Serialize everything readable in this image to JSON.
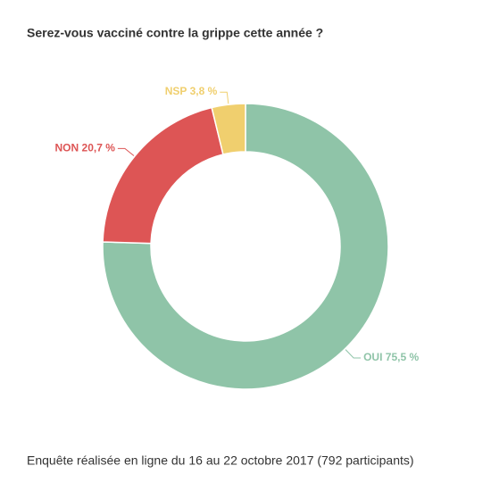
{
  "chart_data": {
    "type": "donut",
    "title": "Serez-vous vacciné contre la grippe cette année ?",
    "categories": [
      "OUI",
      "NON",
      "NSP"
    ],
    "values": [
      75.5,
      20.7,
      3.8
    ],
    "value_labels": [
      "75,5 %",
      "20,7 %",
      "3,8 %"
    ],
    "colors": [
      "#8fc4a8",
      "#dd5555",
      "#f0cf6e"
    ],
    "caption": "Enquête réalisée en ligne du 16 au 22 octobre 2017 (792 participants)"
  }
}
